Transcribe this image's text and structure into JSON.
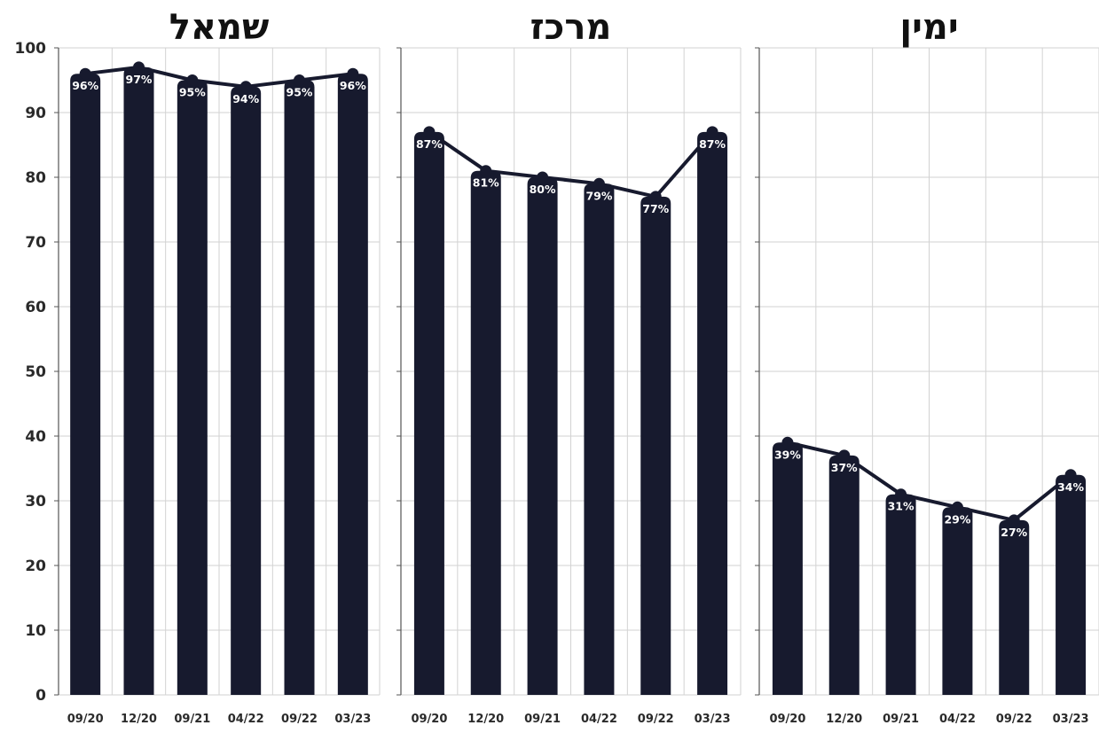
{
  "chart_data": [
    {
      "type": "bar",
      "title": "שמאל",
      "categories": [
        "09/20",
        "12/20",
        "09/21",
        "04/22",
        "09/22",
        "03/23"
      ],
      "values": [
        96,
        97,
        95,
        94,
        95,
        96
      ],
      "labels": [
        "96%",
        "97%",
        "95%",
        "94%",
        "95%",
        "96%"
      ],
      "ylim": [
        0,
        100
      ],
      "yticks": [
        "0",
        "10",
        "20",
        "30",
        "40",
        "50",
        "60",
        "70",
        "80",
        "90",
        "100"
      ],
      "overlay": "line-with-markers",
      "grid": true
    },
    {
      "type": "bar",
      "title": "מרכז",
      "categories": [
        "09/20",
        "12/20",
        "09/21",
        "04/22",
        "09/22",
        "03/23"
      ],
      "values": [
        87,
        81,
        80,
        79,
        77,
        87
      ],
      "labels": [
        "87%",
        "81%",
        "80%",
        "79%",
        "77%",
        "87%"
      ],
      "ylim": [
        0,
        100
      ],
      "overlay": "line-with-markers",
      "grid": true
    },
    {
      "type": "bar",
      "title": "ימין",
      "categories": [
        "09/20",
        "12/20",
        "09/21",
        "04/22",
        "09/22",
        "03/23"
      ],
      "values": [
        39,
        37,
        31,
        29,
        27,
        34
      ],
      "labels": [
        "39%",
        "37%",
        "31%",
        "29%",
        "27%",
        "34%"
      ],
      "ylim": [
        0,
        100
      ],
      "overlay": "line-with-markers",
      "grid": true
    }
  ],
  "colors": {
    "bar": "#171a2e",
    "line": "#171a2e",
    "grid": "#d2d2d2",
    "axis": "#555555",
    "label": "#ffffff"
  }
}
